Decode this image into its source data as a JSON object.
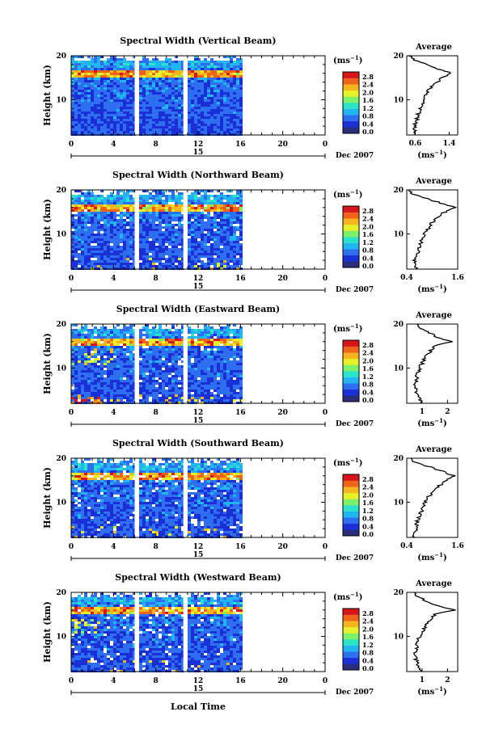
{
  "page": {
    "xlabel": "Local Time",
    "date_label": "Dec 2007",
    "day_label": "15"
  },
  "colorbar": {
    "unit_label": "(ms",
    "unit_exp": "−1",
    "unit_close": ")",
    "ticks": [
      "2.8",
      "2.4",
      "2.0",
      "1.6",
      "1.2",
      "0.8",
      "0.4",
      "0.0"
    ],
    "colors": [
      "#2a2e7a",
      "#1a2fd6",
      "#2d6ff0",
      "#21b6f2",
      "#2be3c8",
      "#7df06a",
      "#e8f02a",
      "#f5b51e",
      "#f0631a",
      "#d8161a"
    ]
  },
  "chart_data": [
    {
      "type": "heatmap",
      "title": "Spectral Width (Vertical Beam)",
      "ylabel": "Height (km)",
      "xticks": [
        "0",
        "4",
        "8",
        "12",
        "16",
        "20",
        "0"
      ],
      "yticks": [
        "20",
        "10"
      ],
      "xlim": [
        0,
        24
      ],
      "ylim": [
        2,
        20
      ],
      "data_end_hour": 16,
      "gaps_hours": [
        [
          6.0,
          6.4
        ],
        [
          10.6,
          10.8
        ]
      ],
      "avg": {
        "title": "Average",
        "xticks": [
          "0.6",
          "1.4"
        ],
        "xlim": [
          0.4,
          1.6
        ],
        "xlabel": "(ms",
        "xlabel_exp": "−1",
        "xlabel_close": ")",
        "heights": [
          2,
          3,
          4,
          5,
          6,
          7,
          8,
          9,
          10,
          11,
          12,
          13,
          14,
          15,
          16,
          17,
          18,
          19,
          20
        ],
        "values": [
          0.55,
          0.6,
          0.58,
          0.62,
          0.65,
          0.68,
          0.72,
          0.75,
          0.8,
          0.85,
          0.9,
          1.0,
          1.1,
          1.25,
          1.45,
          1.15,
          0.85,
          0.6,
          0.45
        ]
      }
    },
    {
      "type": "heatmap",
      "title": "Spectral Width (Northward Beam)",
      "ylabel": "Height (km)",
      "xticks": [
        "0",
        "4",
        "8",
        "12",
        "16",
        "20",
        "0"
      ],
      "yticks": [
        "20",
        "10"
      ],
      "xlim": [
        0,
        24
      ],
      "ylim": [
        2,
        20
      ],
      "data_end_hour": 16,
      "gaps_hours": [
        [
          6.0,
          6.4
        ],
        [
          10.6,
          10.8
        ]
      ],
      "avg": {
        "title": "Average",
        "xticks": [
          "0.4",
          "1.6"
        ],
        "xlim": [
          0.4,
          1.6
        ],
        "xlabel": "(ms",
        "xlabel_exp": "−1",
        "xlabel_close": ")",
        "heights": [
          2,
          3,
          4,
          5,
          6,
          7,
          8,
          9,
          10,
          11,
          12,
          13,
          14,
          15,
          16,
          17,
          18,
          19,
          20
        ],
        "values": [
          0.6,
          0.62,
          0.58,
          0.65,
          0.66,
          0.7,
          0.74,
          0.78,
          0.82,
          0.9,
          0.95,
          1.05,
          1.15,
          1.3,
          1.55,
          1.2,
          0.9,
          0.55,
          0.45
        ]
      }
    },
    {
      "type": "heatmap",
      "title": "Spectral Width (Eastward Beam)",
      "ylabel": "Height (km)",
      "xticks": [
        "0",
        "4",
        "8",
        "12",
        "16",
        "20",
        "0"
      ],
      "yticks": [
        "20",
        "10"
      ],
      "xlim": [
        0,
        24
      ],
      "ylim": [
        2,
        20
      ],
      "data_end_hour": 16,
      "gaps_hours": [
        [
          6.0,
          6.4
        ],
        [
          10.6,
          10.8
        ]
      ],
      "avg": {
        "title": "Average",
        "xticks": [
          "1",
          "2"
        ],
        "xlim": [
          0.4,
          2.4
        ],
        "xlabel": "(ms",
        "xlabel_exp": "−1",
        "xlabel_close": ")",
        "heights": [
          2,
          3,
          4,
          5,
          6,
          7,
          8,
          9,
          10,
          11,
          12,
          13,
          14,
          15,
          16,
          17,
          18,
          19,
          20
        ],
        "values": [
          1.0,
          0.9,
          0.8,
          0.75,
          0.7,
          0.75,
          0.8,
          0.85,
          0.9,
          1.0,
          1.1,
          1.2,
          1.35,
          1.5,
          2.2,
          1.6,
          1.3,
          0.9,
          0.8
        ]
      }
    },
    {
      "type": "heatmap",
      "title": "Spectral Width (Southward Beam)",
      "ylabel": "Height (km)",
      "xticks": [
        "0",
        "4",
        "8",
        "12",
        "16",
        "20",
        "0"
      ],
      "yticks": [
        "20",
        "10"
      ],
      "xlim": [
        0,
        24
      ],
      "ylim": [
        2,
        20
      ],
      "data_end_hour": 16,
      "gaps_hours": [
        [
          6.0,
          6.4
        ],
        [
          10.6,
          10.8
        ]
      ],
      "avg": {
        "title": "Average",
        "xticks": [
          "0.4",
          "1.6"
        ],
        "xlim": [
          0.4,
          1.6
        ],
        "xlabel": "(ms",
        "xlabel_exp": "−1",
        "xlabel_close": ")",
        "heights": [
          2,
          3,
          4,
          5,
          6,
          7,
          8,
          9,
          10,
          11,
          12,
          13,
          14,
          15,
          16,
          17,
          18,
          19,
          20
        ],
        "values": [
          0.58,
          0.6,
          0.62,
          0.64,
          0.66,
          0.7,
          0.74,
          0.78,
          0.84,
          0.9,
          0.98,
          1.08,
          1.2,
          1.35,
          1.5,
          1.25,
          0.95,
          0.6,
          0.5
        ]
      }
    },
    {
      "type": "heatmap",
      "title": "Spectral Width (Westward Beam)",
      "ylabel": "Height (km)",
      "xticks": [
        "0",
        "4",
        "8",
        "12",
        "16",
        "20",
        "0"
      ],
      "yticks": [
        "20",
        "10"
      ],
      "xlim": [
        0,
        24
      ],
      "ylim": [
        2,
        20
      ],
      "data_end_hour": 16,
      "gaps_hours": [
        [
          6.0,
          6.4
        ],
        [
          10.6,
          10.8
        ]
      ],
      "avg": {
        "title": "Average",
        "xticks": [
          "1",
          "2"
        ],
        "xlim": [
          0.4,
          2.4
        ],
        "xlabel": "(ms",
        "xlabel_exp": "−1",
        "xlabel_close": ")",
        "heights": [
          2,
          3,
          4,
          5,
          6,
          7,
          8,
          9,
          10,
          11,
          12,
          13,
          14,
          15,
          16,
          17,
          18,
          19,
          20
        ],
        "values": [
          0.9,
          0.85,
          0.8,
          0.75,
          0.72,
          0.75,
          0.8,
          0.85,
          0.9,
          1.0,
          1.1,
          1.2,
          1.35,
          1.5,
          2.25,
          1.6,
          1.2,
          0.8,
          0.7
        ]
      }
    }
  ]
}
